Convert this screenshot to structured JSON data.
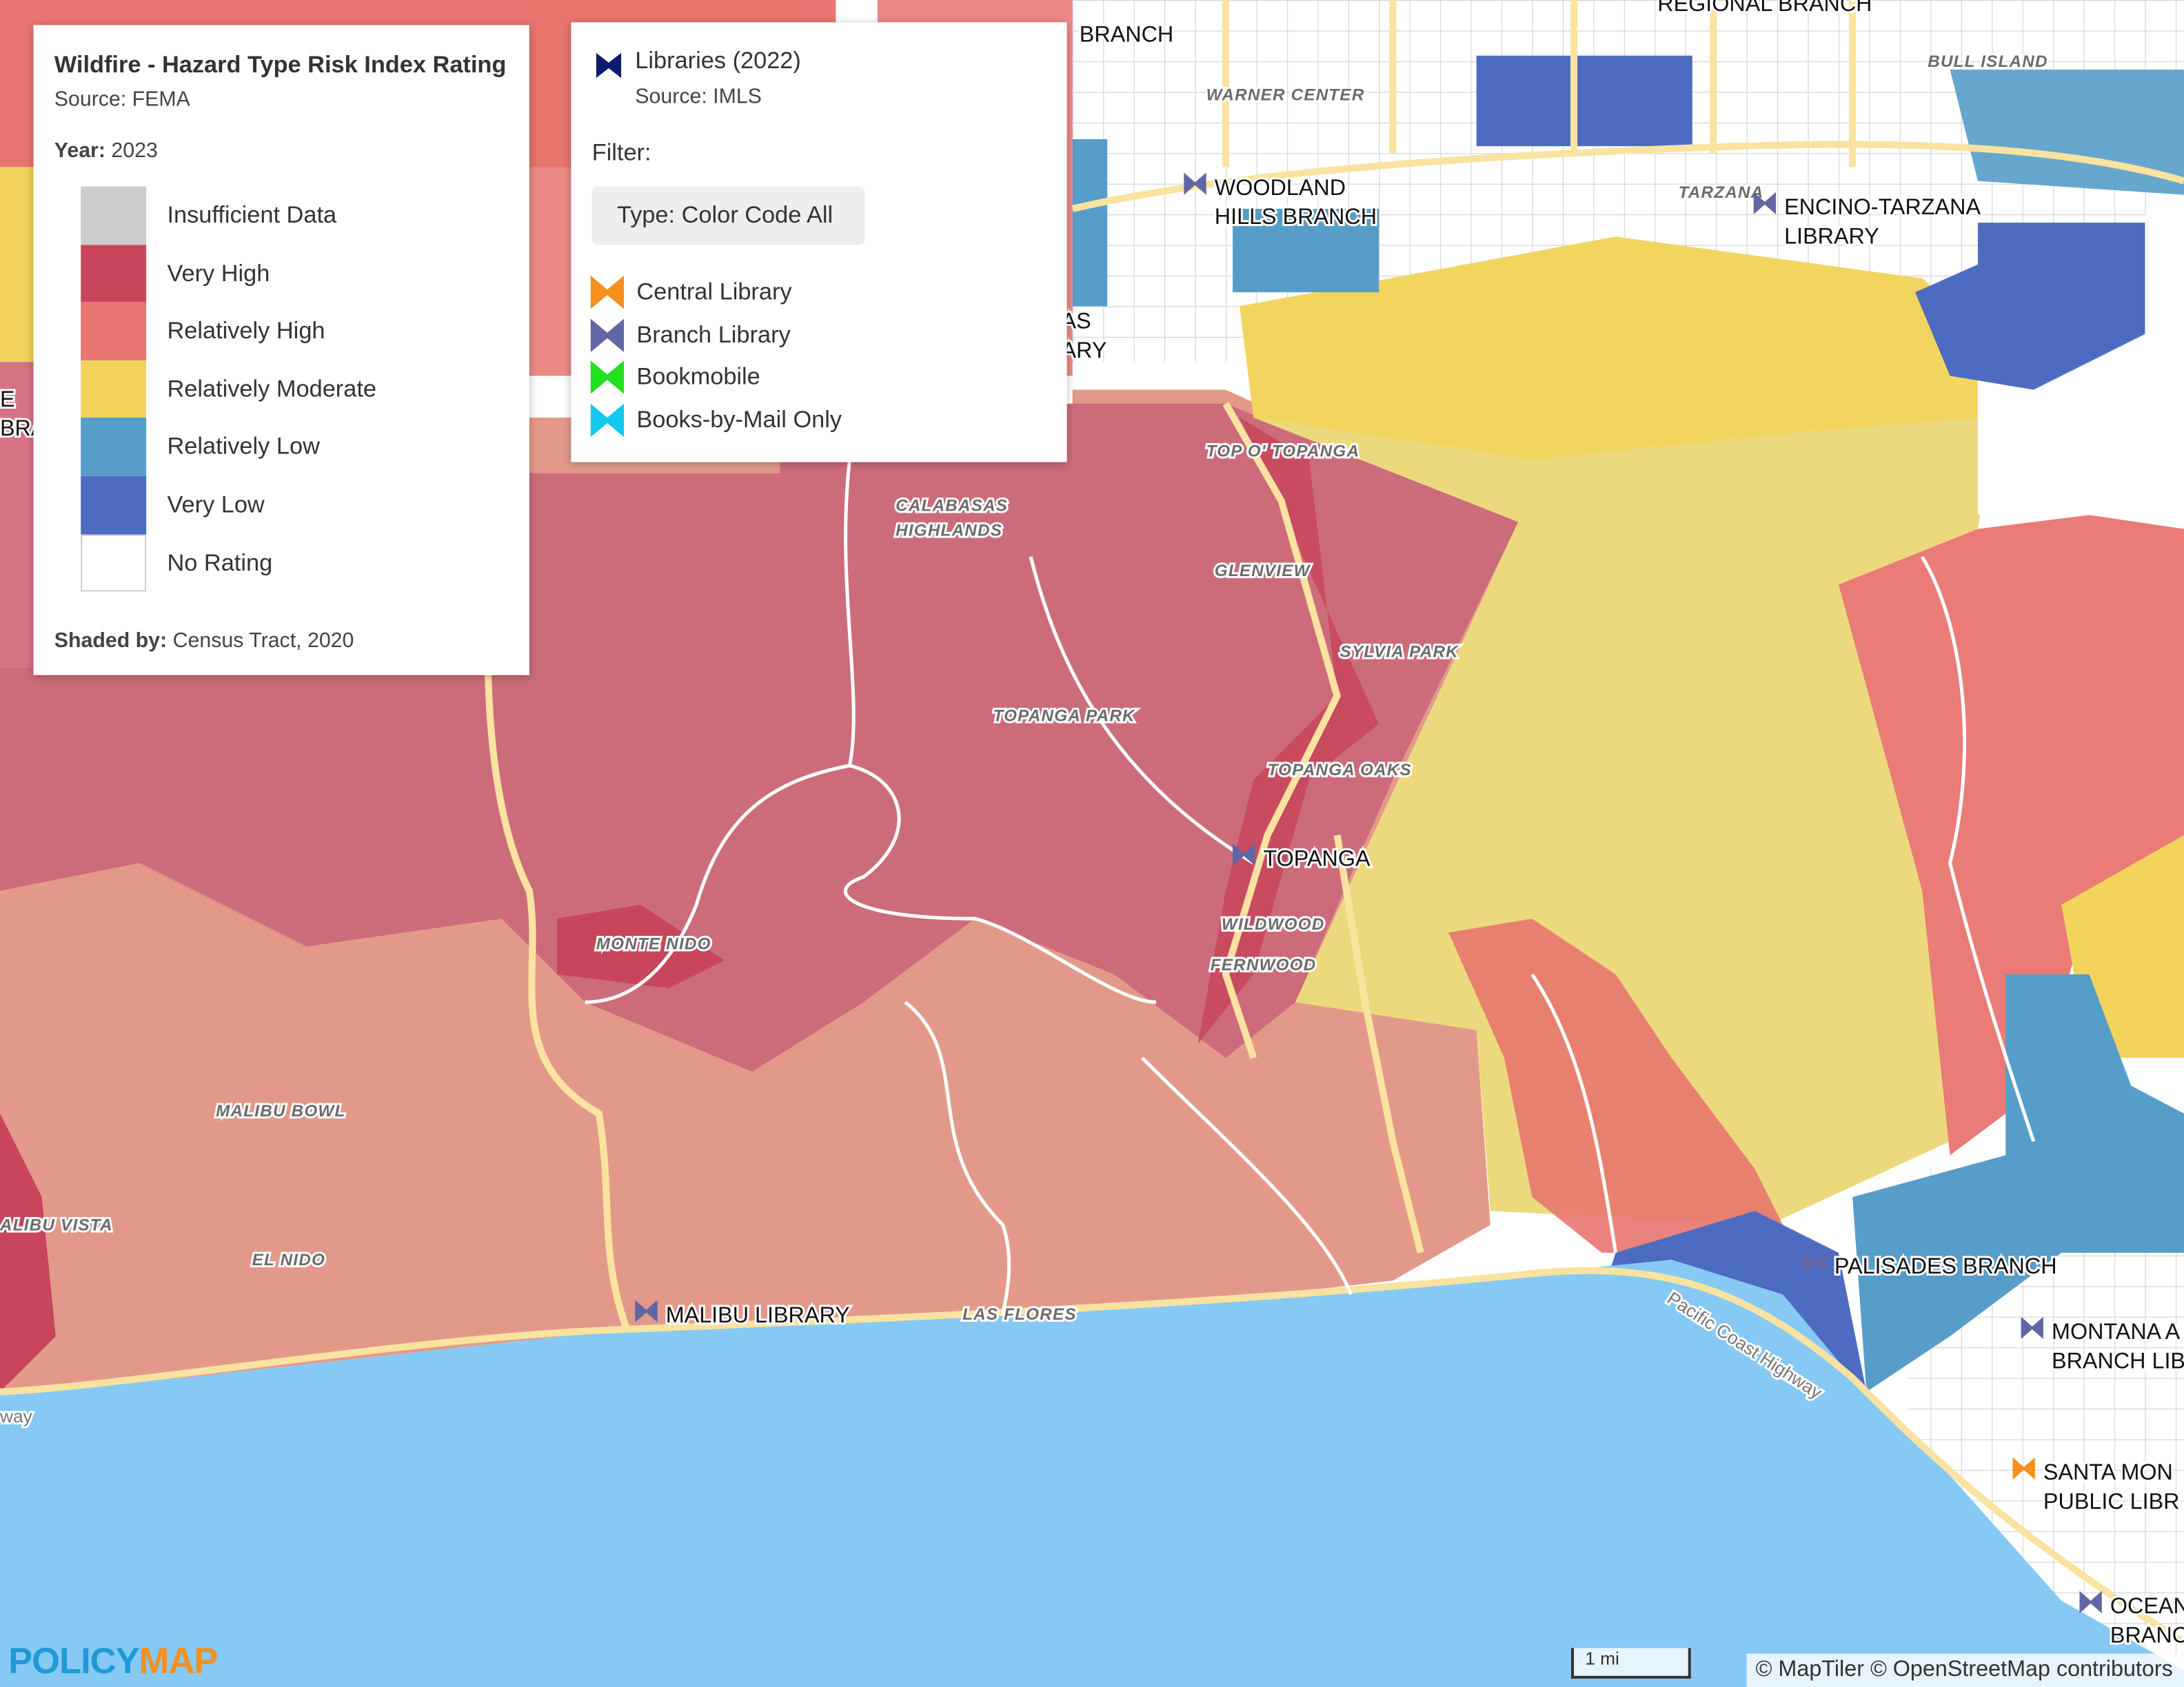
{
  "hazard_legend": {
    "title": "Wildfire - Hazard Type Risk Index Rating",
    "source": "Source: FEMA",
    "year_label": "Year:",
    "year": "2023",
    "items": [
      {
        "label": "Insufficient Data",
        "color": "#cccccc"
      },
      {
        "label": "Very High",
        "color": "#c8455c"
      },
      {
        "label": "Relatively High",
        "color": "#e8756f"
      },
      {
        "label": "Relatively Moderate",
        "color": "#f2d45c"
      },
      {
        "label": "Relatively Low",
        "color": "#579dc9"
      },
      {
        "label": "Very Low",
        "color": "#4d6bc1"
      },
      {
        "label": "No Rating",
        "color": "#ffffff"
      }
    ],
    "shaded_by_label": "Shaded by:",
    "shaded_by": "Census Tract, 2020"
  },
  "library_legend": {
    "title": "Libraries (2022)",
    "title_icon_color": "#0d1b6e",
    "source": "Source: IMLS",
    "filter_label": "Filter:",
    "filter": "Type: Color Code All",
    "items": [
      {
        "label": "Central Library",
        "color": "#f5901e"
      },
      {
        "label": "Branch Library",
        "color": "#6266a3"
      },
      {
        "label": "Bookmobile",
        "color": "#22e01e"
      },
      {
        "label": "Books-by-Mail Only",
        "color": "#14c8f0"
      }
    ]
  },
  "place_labels": [
    "WARNER CENTER",
    "TARZANA",
    "BULL ISLAND",
    "TOP O' TOPANGA",
    "CALABASAS",
    "HIGHLANDS",
    "GLENVIEW",
    "SYLVIA PARK",
    "TOPANGA PARK",
    "TOPANGA OAKS",
    "WILDWOOD",
    "FERNWOOD",
    "MONTE NIDO",
    "MALIBU BOWL",
    "ALIBU VISTA",
    "EL NIDO",
    "LAS FLORES"
  ],
  "road_labels": [
    "Pacific Coast Highway",
    "way"
  ],
  "library_labels": [
    {
      "lines": [
        "BRANCH"
      ]
    },
    {
      "lines": [
        "REGIONAL BRANCH"
      ]
    },
    {
      "lines": [
        "WOODLAND",
        "HILLS BRANCH"
      ]
    },
    {
      "lines": [
        "ENCINO-TARZANA",
        "LIBRARY"
      ]
    },
    {
      "lines": [
        "AS",
        "ARY"
      ]
    },
    {
      "lines": [
        "E",
        "BRA"
      ]
    },
    {
      "lines": [
        "TOPANGA"
      ]
    },
    {
      "lines": [
        "MALIBU LIBRARY"
      ]
    },
    {
      "lines": [
        "PALISADES BRANCH"
      ]
    },
    {
      "lines": [
        "MONTANA A",
        "BRANCH LIB"
      ]
    },
    {
      "lines": [
        "SANTA MON",
        "PUBLIC LIBR"
      ]
    },
    {
      "lines": [
        "OCEAN",
        "BRANC"
      ]
    }
  ],
  "scale": "1 mi",
  "attribution": "© MapTiler © OpenStreetMap contributors",
  "logo": [
    "POLICY",
    "MAP"
  ]
}
